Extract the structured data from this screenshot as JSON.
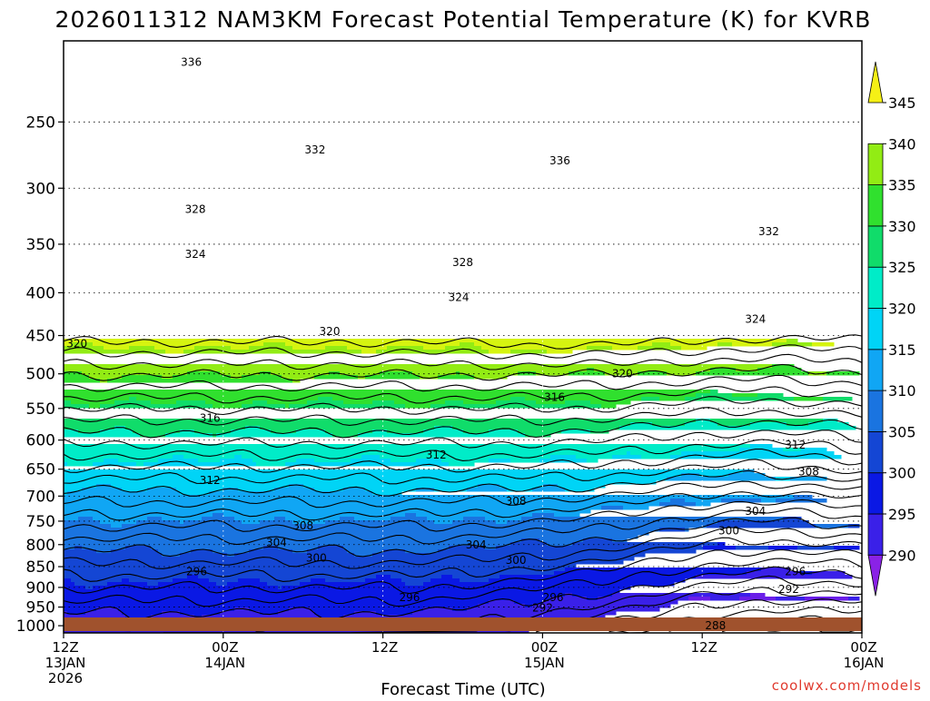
{
  "chart_data": {
    "type": "contour",
    "title": "2026011312 NAM3KM Forecast Potential Temperature (K) for KVRB",
    "xlabel": "Forecast Time (UTC)",
    "ylabel": "",
    "credit": "coolwx.com/models",
    "x_ticks": [
      {
        "hours": 0,
        "lines": [
          "12Z",
          "13JAN",
          "2026"
        ]
      },
      {
        "hours": 12,
        "lines": [
          "00Z",
          "14JAN"
        ]
      },
      {
        "hours": 24,
        "lines": [
          "12Z"
        ]
      },
      {
        "hours": 36,
        "lines": [
          "00Z",
          "15JAN"
        ]
      },
      {
        "hours": 48,
        "lines": [
          "12Z"
        ]
      },
      {
        "hours": 60,
        "lines": [
          "00Z",
          "16JAN"
        ]
      }
    ],
    "xlim_hours": [
      0,
      60
    ],
    "y_ticks": [
      250,
      300,
      350,
      400,
      450,
      500,
      550,
      600,
      650,
      700,
      750,
      800,
      850,
      900,
      950,
      1000
    ],
    "ylim_hpa": [
      1020,
      200
    ],
    "y_scale": "log",
    "colorbar": {
      "levels": [
        290,
        295,
        300,
        305,
        310,
        315,
        320,
        325,
        330,
        335,
        340,
        345
      ],
      "colors": [
        "#6a1ee8",
        "#3a20e8",
        "#0a18e4",
        "#1446d4",
        "#1a74e0",
        "#10a6f4",
        "#00d4f6",
        "#00ecc8",
        "#10dc6a",
        "#30e02e",
        "#92ec14",
        "#d6f410"
      ]
    },
    "contour_interval": 2,
    "contour_labels": [
      {
        "value": 336,
        "t": 9.6,
        "p": 212
      },
      {
        "value": 332,
        "t": 18.9,
        "p": 270
      },
      {
        "value": 336,
        "t": 37.3,
        "p": 278
      },
      {
        "value": 328,
        "t": 9.9,
        "p": 318
      },
      {
        "value": 324,
        "t": 9.9,
        "p": 360
      },
      {
        "value": 328,
        "t": 30.0,
        "p": 368
      },
      {
        "value": 324,
        "t": 29.7,
        "p": 405
      },
      {
        "value": 332,
        "t": 53.0,
        "p": 338
      },
      {
        "value": 324,
        "t": 52.0,
        "p": 430
      },
      {
        "value": 320,
        "t": 1.0,
        "p": 460
      },
      {
        "value": 320,
        "t": 20.0,
        "p": 445
      },
      {
        "value": 320,
        "t": 42.0,
        "p": 500
      },
      {
        "value": 316,
        "t": 36.9,
        "p": 533
      },
      {
        "value": 316,
        "t": 11.0,
        "p": 565
      },
      {
        "value": 312,
        "t": 28.0,
        "p": 625
      },
      {
        "value": 312,
        "t": 55.0,
        "p": 608
      },
      {
        "value": 312,
        "t": 11.0,
        "p": 670
      },
      {
        "value": 308,
        "t": 34.0,
        "p": 710
      },
      {
        "value": 308,
        "t": 56.0,
        "p": 655
      },
      {
        "value": 308,
        "t": 18.0,
        "p": 760
      },
      {
        "value": 304,
        "t": 52.0,
        "p": 730
      },
      {
        "value": 304,
        "t": 16.0,
        "p": 795
      },
      {
        "value": 300,
        "t": 50.0,
        "p": 770
      },
      {
        "value": 304,
        "t": 31.0,
        "p": 800
      },
      {
        "value": 300,
        "t": 19.0,
        "p": 830
      },
      {
        "value": 300,
        "t": 34.0,
        "p": 835
      },
      {
        "value": 296,
        "t": 10.0,
        "p": 862
      },
      {
        "value": 296,
        "t": 55.0,
        "p": 862
      },
      {
        "value": 292,
        "t": 54.5,
        "p": 905
      },
      {
        "value": 296,
        "t": 26.0,
        "p": 925
      },
      {
        "value": 296,
        "t": 36.8,
        "p": 925
      },
      {
        "value": 292,
        "t": 36.0,
        "p": 952
      },
      {
        "value": 288,
        "t": 49.0,
        "p": 1000
      }
    ]
  }
}
